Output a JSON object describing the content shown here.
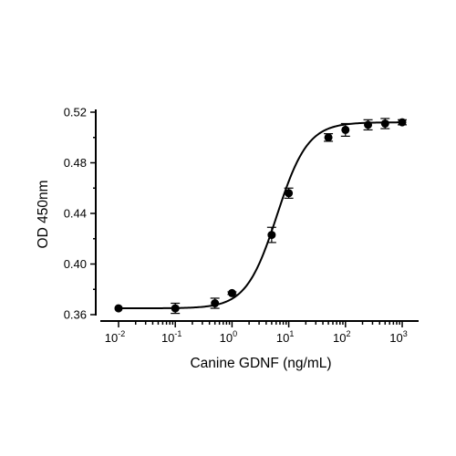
{
  "chart_data": {
    "type": "scatter",
    "xlabel": "Canine GDNF (ng/mL)",
    "ylabel": "OD 450nm",
    "x_scale": "log",
    "xlim": [
      0.01,
      1000
    ],
    "ylim": [
      0.36,
      0.52
    ],
    "y_ticks": [
      "0.36",
      "0.40",
      "0.44",
      "0.48",
      "0.52"
    ],
    "x_ticks": [
      {
        "base": "10",
        "exp": "-2",
        "value": 0.01
      },
      {
        "base": "10",
        "exp": "-1",
        "value": 0.1
      },
      {
        "base": "10",
        "exp": "0",
        "value": 1
      },
      {
        "base": "10",
        "exp": "1",
        "value": 10
      },
      {
        "base": "10",
        "exp": "2",
        "value": 100
      },
      {
        "base": "10",
        "exp": "3",
        "value": 1000
      }
    ],
    "series": [
      {
        "points": [
          {
            "x": 0.01,
            "y": 0.365,
            "err": 0.0
          },
          {
            "x": 0.1,
            "y": 0.365,
            "err": 0.004
          },
          {
            "x": 0.5,
            "y": 0.369,
            "err": 0.004
          },
          {
            "x": 1,
            "y": 0.377,
            "err": 0.001
          },
          {
            "x": 5,
            "y": 0.423,
            "err": 0.006
          },
          {
            "x": 10,
            "y": 0.456,
            "err": 0.004
          },
          {
            "x": 50,
            "y": 0.5,
            "err": 0.003
          },
          {
            "x": 100,
            "y": 0.506,
            "err": 0.005
          },
          {
            "x": 250,
            "y": 0.51,
            "err": 0.004
          },
          {
            "x": 500,
            "y": 0.511,
            "err": 0.004
          },
          {
            "x": 1000,
            "y": 0.512,
            "err": 0.002
          }
        ],
        "fit": {
          "model": "4PL",
          "bottom": 0.365,
          "top": 0.512,
          "ec50": 6.2,
          "hill": 1.6
        }
      }
    ],
    "grid": false,
    "legend": "none"
  }
}
